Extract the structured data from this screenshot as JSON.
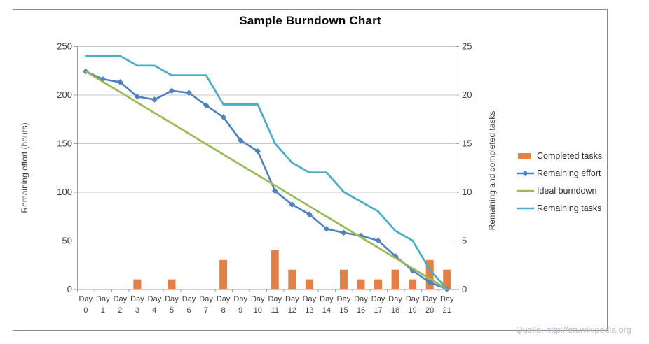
{
  "chart_data": {
    "type": "combo-bar-line",
    "title": "Sample Burndown Chart",
    "x_categories": [
      "Day 0",
      "Day 1",
      "Day 2",
      "Day 3",
      "Day 4",
      "Day 5",
      "Day 6",
      "Day 7",
      "Day 8",
      "Day 9",
      "Day 10",
      "Day 11",
      "Day 12",
      "Day 13",
      "Day 14",
      "Day 15",
      "Day 16",
      "Day 17",
      "Day 18",
      "Day 19",
      "Day 20",
      "Day 21"
    ],
    "axes": {
      "left": {
        "label": "Remaining effort (hours)",
        "min": 0,
        "max": 250,
        "ticks": [
          250,
          200,
          150,
          100,
          50,
          0
        ]
      },
      "right": {
        "label": "Remaining and completed tasks",
        "min": 0,
        "max": 25,
        "ticks": [
          25,
          20,
          15,
          10,
          5,
          0
        ]
      }
    },
    "grid": true,
    "legend_position": "right",
    "series": [
      {
        "name": "Completed tasks",
        "type": "bar",
        "axis": "right",
        "color": "#e28045",
        "values": [
          0,
          0,
          0,
          1,
          0,
          1,
          0,
          0,
          3,
          0,
          0,
          4,
          2,
          1,
          0,
          2,
          1,
          1,
          2,
          1,
          3,
          2
        ]
      },
      {
        "name": "Remaining effort",
        "type": "line",
        "marker": "diamond",
        "axis": "left",
        "color": "#4f81bd",
        "values": [
          224,
          216,
          213,
          198,
          195,
          204,
          202,
          189,
          177,
          153,
          142,
          101,
          87,
          77,
          62,
          58,
          55,
          50,
          34,
          19,
          7,
          0
        ]
      },
      {
        "name": "Ideal burndown",
        "type": "line",
        "axis": "left",
        "color": "#9bbb59",
        "values": [
          224,
          213.3,
          202.7,
          192,
          181.3,
          170.7,
          160,
          149.3,
          138.7,
          128,
          117.3,
          106.7,
          96,
          85.3,
          74.7,
          64,
          53.3,
          42.7,
          32,
          21.3,
          10.7,
          0
        ]
      },
      {
        "name": "Remaining tasks",
        "type": "line",
        "axis": "right",
        "color": "#4bacc6",
        "values": [
          24,
          24,
          24,
          23,
          23,
          22,
          22,
          22,
          19,
          19,
          19,
          15,
          13,
          12,
          12,
          10,
          9,
          8,
          6,
          5,
          2,
          0
        ]
      }
    ],
    "style_colors": {
      "gridline": "#c9c9c9",
      "axis_line": "#9e9e9e",
      "tick_text": "#3d3d3d",
      "frame_border": "#8a8a8a",
      "source_text": "#b6bace"
    },
    "source_note": "Quelle: http://en.wikipedia.org"
  }
}
